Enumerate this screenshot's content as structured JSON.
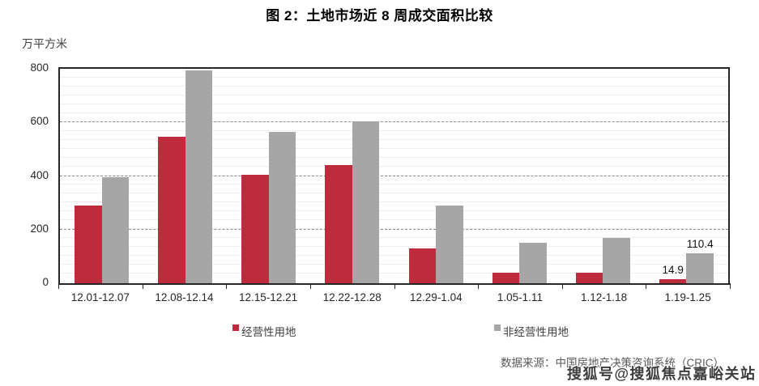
{
  "title": "图 2：土地市场近 8 周成交面积比较",
  "unit_label": "万平方米",
  "legend": {
    "items": [
      {
        "label": "经营性用地",
        "color": "#be2b3d"
      },
      {
        "label": "非经营性用地",
        "color": "#a6a6a6"
      }
    ]
  },
  "source": {
    "prefix": "数据来源：",
    "text": "中国房地产决策咨询系统（CRIC）",
    "watermark": "搜狐号@搜狐焦点嘉峪关站"
  },
  "chart_data": {
    "type": "bar",
    "title": "图 2：土地市场近 8 周成交面积比较",
    "ylabel": "万平方米",
    "xlabel": "",
    "ylim": [
      0,
      800
    ],
    "yticks": [
      0,
      200,
      400,
      600,
      800
    ],
    "grid": "horizontal dashed at 200/400/600",
    "legend_position": "bottom",
    "categories": [
      "12.01-12.07",
      "12.08-12.14",
      "12.15-12.21",
      "12.22-12.28",
      "12.29-1.04",
      "1.05-1.11",
      "1.12-1.18",
      "1.19-1.25"
    ],
    "series": [
      {
        "name": "经营性用地",
        "color": "#be2b3d",
        "values": [
          290,
          545,
          405,
          440,
          130,
          40,
          40,
          14.9
        ]
      },
      {
        "name": "非经营性用地",
        "color": "#a6a6a6",
        "values": [
          395,
          795,
          565,
          605,
          290,
          150,
          170,
          110.4
        ]
      }
    ],
    "point_labels": [
      {
        "series": 0,
        "index": 7,
        "label": "14.9"
      },
      {
        "series": 1,
        "index": 7,
        "label": "110.4"
      }
    ]
  }
}
